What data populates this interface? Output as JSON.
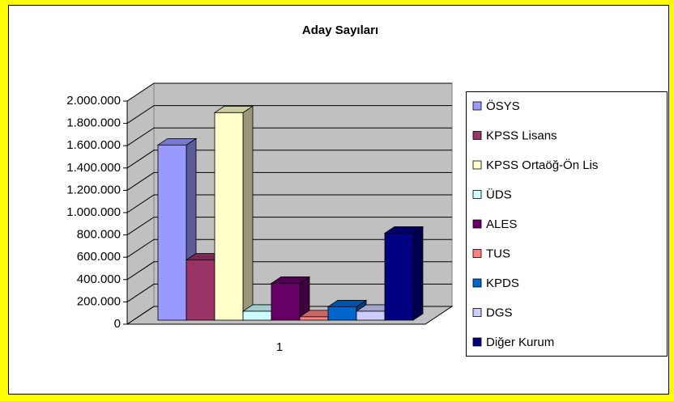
{
  "chart_data": {
    "type": "bar",
    "title": "Aday Sayıları",
    "categories": [
      "1"
    ],
    "series": [
      {
        "name": "ÖSYS",
        "color": "#9999ff",
        "values": [
          1570000
        ]
      },
      {
        "name": "KPSS Lisans",
        "color": "#993366",
        "values": [
          540000
        ]
      },
      {
        "name": "KPSS Ortaöğ-Ön Lis",
        "color": "#ffffcc",
        "values": [
          1860000
        ]
      },
      {
        "name": "ÜDS",
        "color": "#ccffff",
        "values": [
          80000
        ]
      },
      {
        "name": "ALES",
        "color": "#660066",
        "values": [
          330000
        ]
      },
      {
        "name": "TUS",
        "color": "#ff8080",
        "values": [
          30000
        ]
      },
      {
        "name": "KPDS",
        "color": "#0066cc",
        "values": [
          120000
        ]
      },
      {
        "name": "DGS",
        "color": "#ccccff",
        "values": [
          80000
        ]
      },
      {
        "name": "Diğer Kurum",
        "color": "#000080",
        "values": [
          780000
        ]
      }
    ],
    "ylim": [
      0,
      2000000
    ],
    "yticks": [
      0,
      {
        "value": 200000,
        "label": "200.000"
      },
      {
        "value": 400000,
        "label": "400.000"
      },
      {
        "value": 600000,
        "label": "600.000"
      },
      {
        "value": 800000,
        "label": "800.000"
      },
      {
        "value": 1000000,
        "label": "1.000.000"
      },
      {
        "value": 1200000,
        "label": "1.200.000"
      },
      {
        "value": 1400000,
        "label": "1.400.000"
      },
      {
        "value": 1600000,
        "label": "1.600.000"
      },
      {
        "value": 1800000,
        "label": "1.800.000"
      },
      {
        "value": 2000000,
        "label": "2.000.000"
      }
    ],
    "grid": true,
    "legend": "right"
  }
}
